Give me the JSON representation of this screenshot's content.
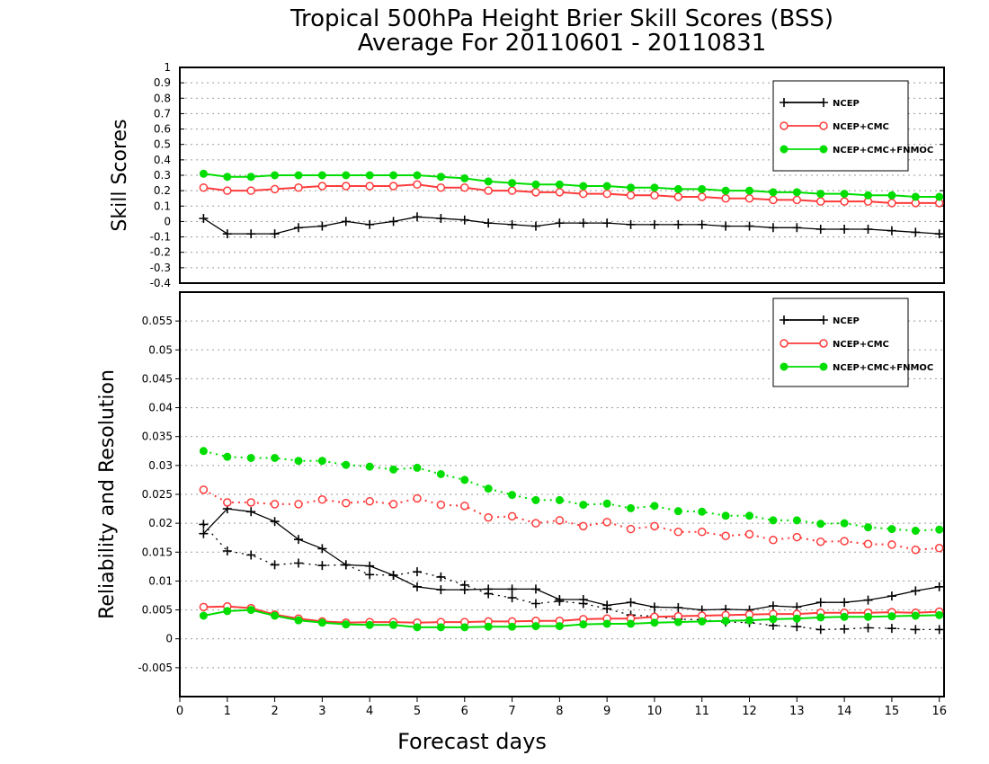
{
  "title_line1": "Tropical 500hPa Height Brier Skill Scores (BSS)",
  "title_line2": "Average For 20110601 - 20110831",
  "colors": {
    "NCEP": "#000000",
    "NCEP+CMC": "#ff3b3b",
    "NCEP+CMC+FNMOC": "#00dd00"
  },
  "chart_data": [
    {
      "type": "line",
      "ylabel": "Skill Scores",
      "xlabel": "",
      "xlim": [
        0,
        16.1
      ],
      "ylim": [
        -0.4,
        1
      ],
      "yticks": [
        -0.4,
        -0.3,
        -0.2,
        -0.1,
        0,
        0.1,
        0.2,
        0.3,
        0.4,
        0.5,
        0.6,
        0.7,
        0.8,
        0.9,
        1
      ],
      "grid": true,
      "legend_position": "top-right",
      "x": [
        0.5,
        1,
        1.5,
        2,
        2.5,
        3,
        3.5,
        4,
        4.5,
        5,
        5.5,
        6,
        6.5,
        7,
        7.5,
        8,
        8.5,
        9,
        9.5,
        10,
        10.5,
        11,
        11.5,
        12,
        12.5,
        13,
        13.5,
        14,
        14.5,
        15,
        15.5,
        16
      ],
      "series": [
        {
          "name": "NCEP",
          "marker": "plus",
          "style": "solid",
          "values": [
            0.02,
            -0.08,
            -0.08,
            -0.08,
            -0.04,
            -0.03,
            0.0,
            -0.02,
            0.0,
            0.03,
            0.02,
            0.01,
            -0.01,
            -0.02,
            -0.03,
            -0.01,
            -0.01,
            -0.01,
            -0.02,
            -0.02,
            -0.02,
            -0.02,
            -0.03,
            -0.03,
            -0.04,
            -0.04,
            -0.05,
            -0.05,
            -0.05,
            -0.06,
            -0.07,
            -0.08
          ]
        },
        {
          "name": "NCEP+CMC",
          "marker": "circle",
          "style": "solid",
          "values": [
            0.22,
            0.2,
            0.2,
            0.21,
            0.22,
            0.23,
            0.23,
            0.23,
            0.23,
            0.24,
            0.22,
            0.22,
            0.2,
            0.2,
            0.19,
            0.19,
            0.18,
            0.18,
            0.17,
            0.17,
            0.16,
            0.16,
            0.15,
            0.15,
            0.14,
            0.14,
            0.13,
            0.13,
            0.13,
            0.12,
            0.12,
            0.12
          ]
        },
        {
          "name": "NCEP+CMC+FNMOC",
          "marker": "dot",
          "style": "solid",
          "values": [
            0.31,
            0.29,
            0.29,
            0.3,
            0.3,
            0.3,
            0.3,
            0.3,
            0.3,
            0.3,
            0.29,
            0.28,
            0.26,
            0.25,
            0.24,
            0.24,
            0.23,
            0.23,
            0.22,
            0.22,
            0.21,
            0.21,
            0.2,
            0.2,
            0.19,
            0.19,
            0.18,
            0.18,
            0.17,
            0.17,
            0.16,
            0.16
          ]
        }
      ]
    },
    {
      "type": "line",
      "ylabel": "Reliability and Resolution",
      "xlabel": "Forecast days",
      "xlim": [
        0,
        16.1
      ],
      "ylim": [
        -0.01,
        0.06
      ],
      "yticks": [
        -0.005,
        0,
        0.005,
        0.01,
        0.015,
        0.02,
        0.025,
        0.03,
        0.035,
        0.04,
        0.045,
        0.05,
        0.055
      ],
      "xticks": [
        0,
        1,
        2,
        3,
        4,
        5,
        6,
        7,
        8,
        9,
        10,
        11,
        12,
        13,
        14,
        15,
        16
      ],
      "grid": true,
      "legend_position": "top-right",
      "legend": [
        "NCEP",
        "NCEP+CMC",
        "NCEP+CMC+FNMOC"
      ],
      "x": [
        0.5,
        1,
        1.5,
        2,
        2.5,
        3,
        3.5,
        4,
        4.5,
        5,
        5.5,
        6,
        6.5,
        7,
        7.5,
        8,
        8.5,
        9,
        9.5,
        10,
        10.5,
        11,
        11.5,
        12,
        12.5,
        13,
        13.5,
        14,
        14.5,
        15,
        15.5,
        16
      ],
      "series": [
        {
          "name": "NCEP",
          "marker": "plus",
          "style": "solid",
          "values": [
            0.0182,
            0.0225,
            0.022,
            0.0203,
            0.0172,
            0.0156,
            0.0128,
            0.0126,
            0.011,
            0.009,
            0.0085,
            0.0085,
            0.0086,
            0.0086,
            0.0086,
            0.0068,
            0.0068,
            0.0058,
            0.0063,
            0.0055,
            0.0054,
            0.005,
            0.0051,
            0.005,
            0.0057,
            0.0055,
            0.0063,
            0.0063,
            0.0067,
            0.0074,
            0.0083,
            0.009
          ]
        },
        {
          "name": "NCEP",
          "marker": "plus",
          "style": "dotted",
          "values": [
            0.0198,
            0.0152,
            0.0145,
            0.0128,
            0.0131,
            0.0127,
            0.0128,
            0.0111,
            0.011,
            0.0116,
            0.0107,
            0.0093,
            0.0078,
            0.0071,
            0.0061,
            0.0065,
            0.0061,
            0.0052,
            0.0041,
            0.0039,
            0.0034,
            0.0033,
            0.0029,
            0.0028,
            0.0023,
            0.0021,
            0.0016,
            0.0017,
            0.0019,
            0.0018,
            0.0016,
            0.0016
          ]
        },
        {
          "name": "NCEP+CMC",
          "marker": "circle",
          "style": "dotted",
          "values": [
            0.0258,
            0.0236,
            0.0236,
            0.0233,
            0.0233,
            0.0241,
            0.0235,
            0.0238,
            0.0233,
            0.0243,
            0.0232,
            0.023,
            0.021,
            0.0212,
            0.02,
            0.0205,
            0.0195,
            0.0202,
            0.019,
            0.0195,
            0.0185,
            0.0185,
            0.0178,
            0.0181,
            0.0171,
            0.0176,
            0.0168,
            0.0169,
            0.0164,
            0.0163,
            0.0154,
            0.0157
          ]
        },
        {
          "name": "NCEP+CMC",
          "marker": "circle",
          "style": "solid",
          "values": [
            0.0055,
            0.0056,
            0.0053,
            0.0042,
            0.0035,
            0.003,
            0.0028,
            0.0029,
            0.0029,
            0.0028,
            0.0029,
            0.0029,
            0.003,
            0.003,
            0.0031,
            0.0031,
            0.0034,
            0.0035,
            0.0035,
            0.0038,
            0.0039,
            0.004,
            0.0041,
            0.0042,
            0.0043,
            0.0043,
            0.0045,
            0.0045,
            0.0045,
            0.0046,
            0.0045,
            0.0047
          ]
        },
        {
          "name": "NCEP+CMC+FNMOC",
          "marker": "dot",
          "style": "dotted",
          "values": [
            0.0325,
            0.0315,
            0.0313,
            0.0313,
            0.0308,
            0.0308,
            0.0301,
            0.0298,
            0.0293,
            0.0296,
            0.0285,
            0.0275,
            0.026,
            0.0249,
            0.024,
            0.024,
            0.0232,
            0.0234,
            0.0226,
            0.023,
            0.0221,
            0.022,
            0.0213,
            0.0213,
            0.0205,
            0.0205,
            0.0199,
            0.02,
            0.0193,
            0.019,
            0.0187,
            0.0189
          ]
        },
        {
          "name": "NCEP+CMC+FNMOC",
          "marker": "dot",
          "style": "solid",
          "values": [
            0.004,
            0.0048,
            0.005,
            0.004,
            0.0032,
            0.0028,
            0.0025,
            0.0024,
            0.0024,
            0.002,
            0.002,
            0.002,
            0.0021,
            0.0021,
            0.0022,
            0.0022,
            0.0025,
            0.0026,
            0.0026,
            0.0028,
            0.0029,
            0.003,
            0.0031,
            0.0032,
            0.0034,
            0.0035,
            0.0037,
            0.0038,
            0.0038,
            0.0039,
            0.004,
            0.0041
          ]
        }
      ]
    }
  ]
}
